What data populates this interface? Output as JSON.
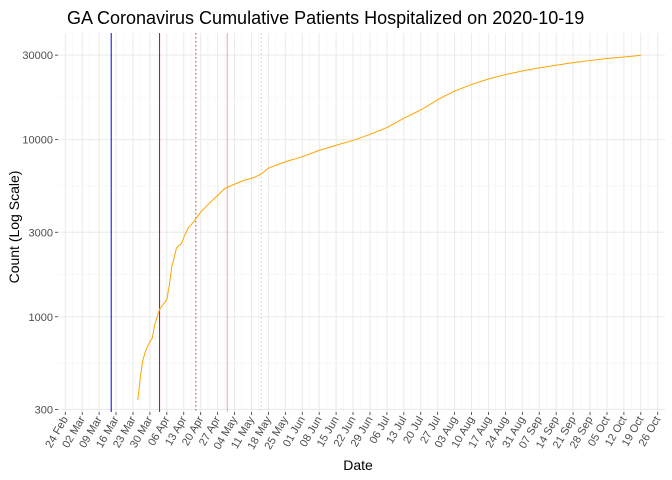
{
  "chart_data": {
    "type": "line",
    "title": "GA Coronavirus Cumulative Patients Hospitalized on 2020-10-19",
    "xlabel": "Date",
    "ylabel": "Count (Log Scale)",
    "y_scale": "log10",
    "ylim": [
      290,
      40000
    ],
    "xlim": [
      "2020-02-21",
      "2020-10-29"
    ],
    "grid": true,
    "legend": "none",
    "y_ticks": [
      300,
      1000,
      3000,
      10000,
      30000
    ],
    "y_tick_labels": [
      "300",
      "1000",
      "3000",
      "10000",
      "30000"
    ],
    "x_ticks": [
      "2020-02-24",
      "2020-03-02",
      "2020-03-09",
      "2020-03-16",
      "2020-03-23",
      "2020-03-30",
      "2020-04-06",
      "2020-04-13",
      "2020-04-20",
      "2020-04-27",
      "2020-05-04",
      "2020-05-11",
      "2020-05-18",
      "2020-05-25",
      "2020-06-01",
      "2020-06-08",
      "2020-06-15",
      "2020-06-22",
      "2020-06-29",
      "2020-07-06",
      "2020-07-13",
      "2020-07-20",
      "2020-07-27",
      "2020-08-03",
      "2020-08-10",
      "2020-08-17",
      "2020-08-24",
      "2020-08-31",
      "2020-09-07",
      "2020-09-14",
      "2020-09-21",
      "2020-09-28",
      "2020-10-05",
      "2020-10-12",
      "2020-10-19",
      "2020-10-26"
    ],
    "x_tick_labels": [
      "24 Feb",
      "02 Mar",
      "09 Mar",
      "16 Mar",
      "23 Mar",
      "30 Mar",
      "06 Apr",
      "13 Apr",
      "20 Apr",
      "27 Apr",
      "04 May",
      "11 May",
      "18 May",
      "25 May",
      "01 Jun",
      "08 Jun",
      "15 Jun",
      "22 Jun",
      "29 Jun",
      "06 Jul",
      "13 Jul",
      "20 Jul",
      "27 Jul",
      "03 Aug",
      "10 Aug",
      "17 Aug",
      "24 Aug",
      "31 Aug",
      "07 Sep",
      "14 Sep",
      "21 Sep",
      "28 Sep",
      "05 Oct",
      "12 Oct",
      "19 Oct",
      "26 Oct"
    ],
    "reference_lines": [
      {
        "date": "2020-03-14",
        "color": "#0000ff",
        "style": "solid"
      },
      {
        "date": "2020-04-03",
        "color": "#cc0000",
        "style": "solid"
      },
      {
        "date": "2020-04-18",
        "color": "#cc3333",
        "style": "dotted"
      },
      {
        "date": "2020-05-01",
        "color": "#f4a3a3",
        "style": "solid"
      },
      {
        "date": "2020-05-15",
        "color": "#cccccc",
        "style": "dotted"
      }
    ],
    "series": [
      {
        "color": "#ffa500",
        "points": [
          [
            "2020-03-25",
            340
          ],
          [
            "2020-03-26",
            450
          ],
          [
            "2020-03-27",
            560
          ],
          [
            "2020-03-28",
            630
          ],
          [
            "2020-03-29",
            680
          ],
          [
            "2020-03-30",
            720
          ],
          [
            "2020-03-31",
            760
          ],
          [
            "2020-04-01",
            900
          ],
          [
            "2020-04-02",
            1000
          ],
          [
            "2020-04-03",
            1100
          ],
          [
            "2020-04-04",
            1150
          ],
          [
            "2020-04-05",
            1200
          ],
          [
            "2020-04-06",
            1250
          ],
          [
            "2020-04-07",
            1500
          ],
          [
            "2020-04-08",
            1900
          ],
          [
            "2020-04-09",
            2150
          ],
          [
            "2020-04-10",
            2450
          ],
          [
            "2020-04-11",
            2520
          ],
          [
            "2020-04-12",
            2580
          ],
          [
            "2020-04-13",
            2800
          ],
          [
            "2020-04-14",
            3000
          ],
          [
            "2020-04-15",
            3200
          ],
          [
            "2020-04-16",
            3300
          ],
          [
            "2020-04-17",
            3420
          ],
          [
            "2020-04-20",
            3900
          ],
          [
            "2020-04-23",
            4300
          ],
          [
            "2020-04-26",
            4700
          ],
          [
            "2020-04-30",
            5300
          ],
          [
            "2020-05-04",
            5600
          ],
          [
            "2020-05-08",
            5900
          ],
          [
            "2020-05-12",
            6100
          ],
          [
            "2020-05-15",
            6400
          ],
          [
            "2020-05-18",
            6900
          ],
          [
            "2020-05-25",
            7500
          ],
          [
            "2020-06-01",
            8000
          ],
          [
            "2020-06-08",
            8700
          ],
          [
            "2020-06-15",
            9300
          ],
          [
            "2020-06-22",
            9900
          ],
          [
            "2020-06-29",
            10700
          ],
          [
            "2020-07-06",
            11700
          ],
          [
            "2020-07-13",
            13200
          ],
          [
            "2020-07-20",
            14700
          ],
          [
            "2020-07-27",
            16800
          ],
          [
            "2020-08-03",
            18800
          ],
          [
            "2020-08-10",
            20500
          ],
          [
            "2020-08-17",
            22000
          ],
          [
            "2020-08-24",
            23300
          ],
          [
            "2020-08-31",
            24400
          ],
          [
            "2020-09-07",
            25400
          ],
          [
            "2020-09-14",
            26300
          ],
          [
            "2020-09-21",
            27200
          ],
          [
            "2020-09-28",
            28000
          ],
          [
            "2020-10-05",
            28700
          ],
          [
            "2020-10-12",
            29300
          ],
          [
            "2020-10-19",
            29900
          ]
        ]
      }
    ]
  }
}
